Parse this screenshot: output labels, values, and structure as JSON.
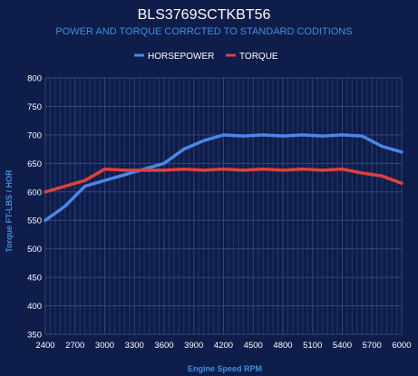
{
  "chart_data": {
    "type": "line",
    "title": "BLS3769SCTKBT56",
    "subtitle": "POWER AND TORQUE CORRCTED TO STANDARD CODITIONS",
    "xlabel": "Engine Speed RPM",
    "ylabel": "Torque FT-LBS / HOR",
    "xlim": [
      2400,
      6000
    ],
    "ylim": [
      350,
      800
    ],
    "xticks": [
      2400,
      2700,
      3000,
      3300,
      3600,
      3900,
      4200,
      4500,
      4800,
      5100,
      5400,
      5700,
      6000
    ],
    "yticks": [
      350,
      400,
      450,
      500,
      550,
      600,
      650,
      700,
      750,
      800
    ],
    "grid": true,
    "legend_position": "top-center",
    "series": [
      {
        "name": "HORSEPOWER",
        "color": "#4a86e8",
        "x": [
          2400,
          2600,
          2800,
          3000,
          3200,
          3400,
          3600,
          3800,
          4000,
          4200,
          4400,
          4600,
          4800,
          5000,
          5200,
          5400,
          5600,
          5800,
          6000
        ],
        "y": [
          550,
          575,
          610,
          620,
          630,
          640,
          650,
          675,
          690,
          700,
          698,
          700,
          698,
          700,
          698,
          700,
          698,
          680,
          670
        ]
      },
      {
        "name": "TORQUE",
        "color": "#e0403a",
        "x": [
          2400,
          2600,
          2800,
          3000,
          3200,
          3400,
          3600,
          3800,
          4000,
          4200,
          4400,
          4600,
          4800,
          5000,
          5200,
          5400,
          5600,
          5800,
          6000
        ],
        "y": [
          600,
          610,
          620,
          640,
          638,
          638,
          638,
          640,
          638,
          640,
          638,
          640,
          638,
          640,
          638,
          640,
          633,
          628,
          615
        ]
      }
    ]
  }
}
